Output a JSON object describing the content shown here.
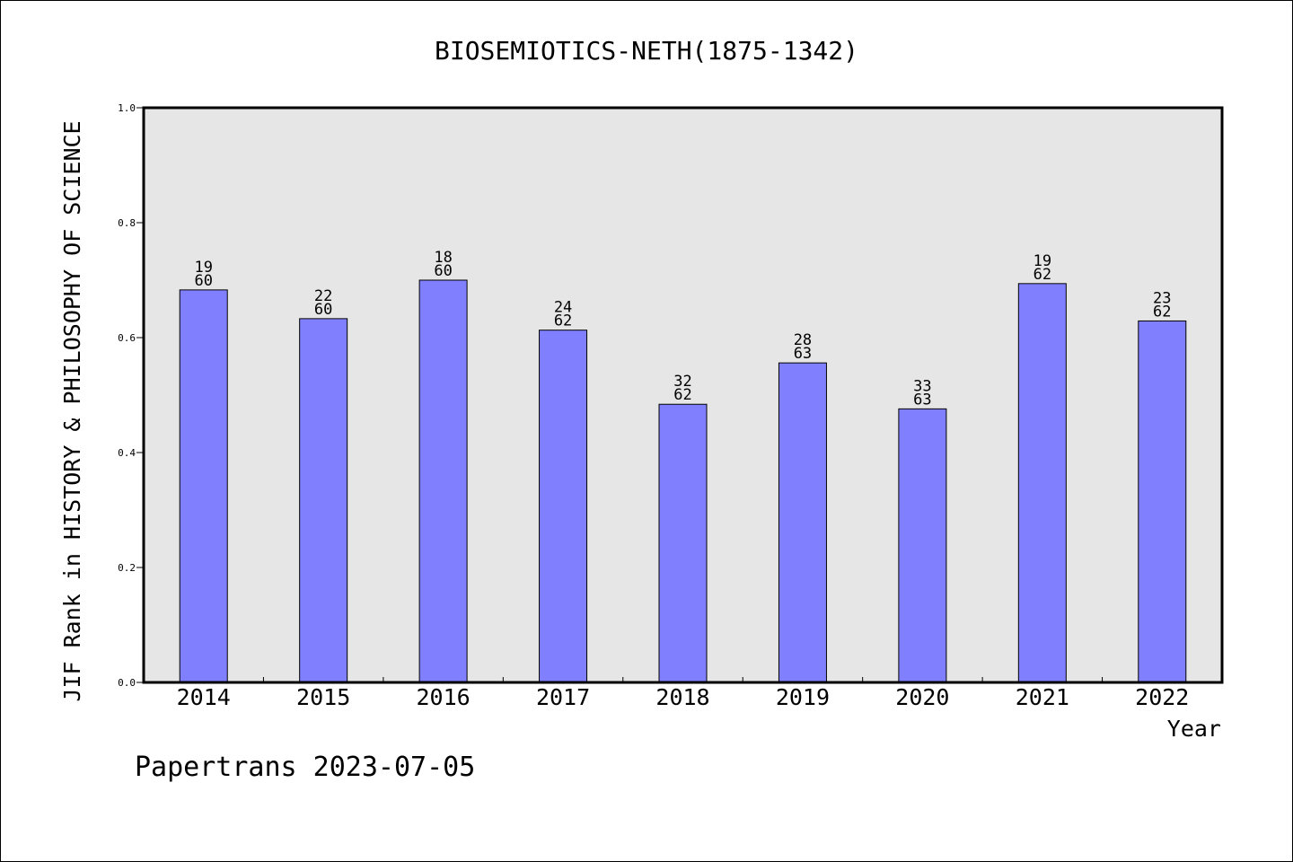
{
  "chart_data": {
    "type": "bar",
    "title": "BIOSEMIOTICS-NETH(1875-1342)",
    "xlabel": "Year",
    "ylabel": "JIF Rank in HISTORY & PHILOSOPHY OF SCIENCE",
    "ylim": [
      0,
      1.0
    ],
    "yticks": [
      "0.0",
      "0.2",
      "0.4",
      "0.6",
      "0.8",
      "1.0"
    ],
    "categories": [
      "2014",
      "2015",
      "2016",
      "2017",
      "2018",
      "2019",
      "2020",
      "2021",
      "2022"
    ],
    "values": [
      0.683,
      0.633,
      0.7,
      0.613,
      0.484,
      0.556,
      0.476,
      0.694,
      0.629
    ],
    "labels": [
      {
        "rank": "19",
        "total": "60"
      },
      {
        "rank": "22",
        "total": "60"
      },
      {
        "rank": "18",
        "total": "60"
      },
      {
        "rank": "24",
        "total": "62"
      },
      {
        "rank": "32",
        "total": "62"
      },
      {
        "rank": "28",
        "total": "63"
      },
      {
        "rank": "33",
        "total": "63"
      },
      {
        "rank": "19",
        "total": "62"
      },
      {
        "rank": "23",
        "total": "62"
      }
    ],
    "grid": false,
    "bar_color": "#8080ff",
    "plot_background": "#e6e6e6"
  },
  "footer": "Papertrans 2023-07-05"
}
